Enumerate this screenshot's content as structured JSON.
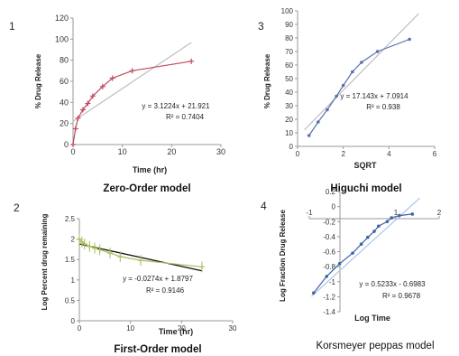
{
  "chart_data": [
    {
      "panel_number": "1",
      "title": "Zero-Order model",
      "type": "scatter",
      "xlabel": "Time (hr)",
      "ylabel": "% Drug Release",
      "xlim": [
        0,
        30
      ],
      "ylim": [
        0,
        120
      ],
      "xticks": [
        "0",
        "10",
        "20",
        "30"
      ],
      "yticks": [
        "0",
        "20",
        "40",
        "60",
        "80",
        "100",
        "120"
      ],
      "x": [
        0,
        0.5,
        1,
        2,
        3,
        4,
        6,
        8,
        12,
        24
      ],
      "y": [
        0,
        15,
        25,
        33,
        39,
        46,
        55,
        63,
        70,
        79
      ],
      "series_color": "#c04a60",
      "trendline": {
        "slope": 3.1224,
        "intercept": 21.921,
        "color": "#bfbfbf"
      },
      "equation": "y = 3.1224x + 21.921",
      "r2": "R² = 0.7404"
    },
    {
      "panel_number": "3",
      "title": "Higuchi model",
      "type": "scatter",
      "xlabel": "SQRT",
      "ylabel": "% Drug Release",
      "xlim": [
        0,
        6
      ],
      "ylim": [
        0,
        100
      ],
      "xticks": [
        "0",
        "2",
        "4",
        "6"
      ],
      "yticks": [
        "0",
        "10",
        "20",
        "30",
        "40",
        "50",
        "60",
        "70",
        "80",
        "90",
        "100"
      ],
      "x": [
        0.5,
        0.9,
        1.3,
        1.7,
        2.0,
        2.4,
        2.8,
        3.5,
        4.9
      ],
      "y": [
        8,
        18,
        27,
        37,
        45,
        55,
        62,
        70,
        79
      ],
      "series_color": "#5a6fb0",
      "trendline": {
        "slope": 17.143,
        "intercept": 7.0914,
        "color": "#bfbfbf"
      },
      "equation": "y = 17.143x + 7.0914",
      "r2": "R² = 0.938"
    },
    {
      "panel_number": "2",
      "title": "First-Order model",
      "type": "scatter",
      "xlabel": "Time (hr)",
      "ylabel": "Log Percent drug remaining",
      "xlim": [
        0,
        30
      ],
      "ylim": [
        0,
        2.5
      ],
      "xticks": [
        "0",
        "10",
        "20",
        "30"
      ],
      "yticks": [
        "0",
        "0.5",
        "1",
        "1.5",
        "2",
        "2.5"
      ],
      "x": [
        0,
        0.5,
        1,
        2,
        3,
        4,
        6,
        8,
        12,
        24
      ],
      "y": [
        2.0,
        1.93,
        1.88,
        1.82,
        1.78,
        1.74,
        1.66,
        1.57,
        1.48,
        1.32
      ],
      "series_color": "#a8c060",
      "trendline": {
        "slope": -0.0274,
        "intercept": 1.8797,
        "color": "#111111"
      },
      "equation": "y = -0.0274x + 1.8797",
      "r2": "R² = 0.9146"
    },
    {
      "panel_number": "4",
      "title": "Korsmeyer peppas model",
      "type": "scatter",
      "xlabel": "Log Time",
      "ylabel": "Log Fraction Drug Release",
      "xlim": [
        -1,
        2
      ],
      "ylim": [
        -1.4,
        0.2
      ],
      "xticks": [
        "-1",
        "1",
        "2"
      ],
      "yticks": [
        "0.2",
        "0",
        "-0.2",
        "-0.4",
        "-0.6",
        "-0.8",
        "-1",
        "-1.2",
        "-1.4"
      ],
      "x": [
        -0.9,
        -0.6,
        -0.3,
        0,
        0.2,
        0.35,
        0.5,
        0.6,
        0.8,
        0.9,
        1.08,
        1.38
      ],
      "y": [
        -1.15,
        -0.93,
        -0.76,
        -0.62,
        -0.5,
        -0.41,
        -0.33,
        -0.26,
        -0.2,
        -0.15,
        -0.12,
        -0.1
      ],
      "series_color": "#3f63a8",
      "trendline": {
        "slope": 0.5233,
        "intercept": -0.6983,
        "color": "#a9c8e8"
      },
      "equation": "y = 0.5233x - 0.6983",
      "r2": "R² = 0.9678"
    }
  ]
}
